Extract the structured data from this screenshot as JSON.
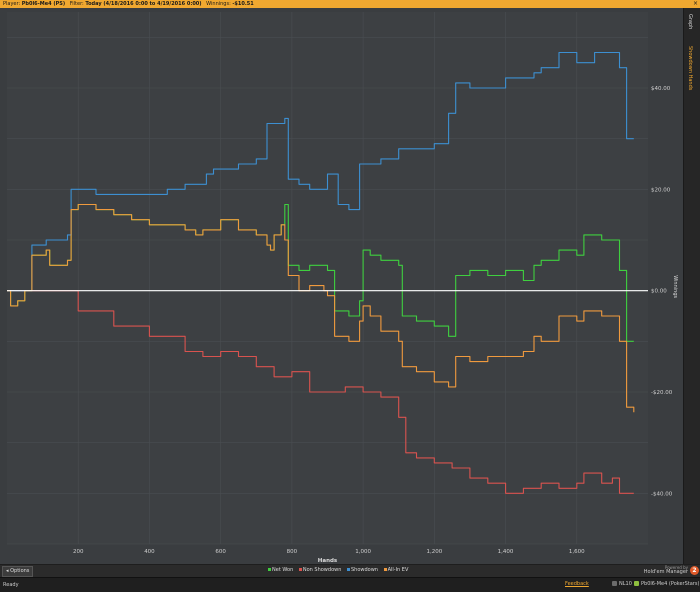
{
  "header": {
    "player_label": "Player:",
    "player_value": "Pb0l6-Me4 (PS)",
    "filter_label": "Filter:",
    "filter_value": "Today (4/18/2016 0:00 to 4/19/2016 0:00)",
    "winnings_label": "Winnings:",
    "winnings_value": "-$10.51",
    "close_glyph": "×"
  },
  "side_tabs": {
    "graph": "Graph",
    "showdown_hands": "Showdown Hands"
  },
  "options_label": "Options",
  "brand": {
    "powered_by": "Powered by",
    "name": "Hold'em Manager",
    "logo_digit": "2"
  },
  "status": {
    "text": "Ready",
    "feedback": "Feedback",
    "stake": "NL10",
    "player": "Pb0l6-Me4 (PokerStars)"
  },
  "colors": {
    "net_won": "#3fcf3f",
    "non_showdown": "#d9534f",
    "showdown": "#3d8fd1",
    "allin_ev": "#f09a3e",
    "zero_line": "#ffffff",
    "accent": "#f0a830"
  },
  "chart_data": {
    "type": "line",
    "xlabel": "Hands",
    "ylabel": "Winnings",
    "xlim": [
      0,
      1800
    ],
    "ylim": [
      -50,
      55
    ],
    "x_ticks": [
      200,
      400,
      600,
      800,
      1000,
      1200,
      1400,
      1600
    ],
    "x_tick_labels": [
      "200",
      "400",
      "600",
      "800",
      "1,000",
      "1,200",
      "1,400",
      "1,600"
    ],
    "y_ticks": [
      40,
      20,
      0,
      -20,
      -40
    ],
    "y_tick_labels": [
      "$40.00",
      "$20.00",
      "$0.00",
      "-$20.00",
      "-$40.00"
    ],
    "grid": true,
    "legend_position": "bottom-center",
    "series": [
      {
        "name": "Net Won",
        "color": "#3fcf3f",
        "points": [
          [
            0,
            0
          ],
          [
            10,
            -3
          ],
          [
            30,
            -2
          ],
          [
            50,
            0
          ],
          [
            70,
            7
          ],
          [
            110,
            8
          ],
          [
            120,
            5
          ],
          [
            170,
            6
          ],
          [
            180,
            16
          ],
          [
            200,
            17
          ],
          [
            250,
            16
          ],
          [
            300,
            15
          ],
          [
            350,
            14
          ],
          [
            400,
            13
          ],
          [
            450,
            13
          ],
          [
            500,
            12
          ],
          [
            530,
            11
          ],
          [
            550,
            12
          ],
          [
            580,
            12
          ],
          [
            600,
            14
          ],
          [
            650,
            12
          ],
          [
            700,
            11
          ],
          [
            730,
            9
          ],
          [
            740,
            8
          ],
          [
            750,
            11
          ],
          [
            770,
            13
          ],
          [
            780,
            17
          ],
          [
            790,
            5
          ],
          [
            820,
            4
          ],
          [
            850,
            5
          ],
          [
            890,
            5
          ],
          [
            900,
            4
          ],
          [
            920,
            -4
          ],
          [
            960,
            -5
          ],
          [
            990,
            -2
          ],
          [
            1000,
            8
          ],
          [
            1020,
            7
          ],
          [
            1050,
            6
          ],
          [
            1100,
            5
          ],
          [
            1110,
            -5
          ],
          [
            1150,
            -6
          ],
          [
            1200,
            -7
          ],
          [
            1240,
            -9
          ],
          [
            1260,
            3
          ],
          [
            1300,
            4
          ],
          [
            1350,
            3
          ],
          [
            1400,
            4
          ],
          [
            1450,
            2
          ],
          [
            1480,
            5
          ],
          [
            1500,
            6
          ],
          [
            1550,
            8
          ],
          [
            1600,
            7
          ],
          [
            1620,
            11
          ],
          [
            1670,
            10
          ],
          [
            1720,
            4
          ],
          [
            1740,
            -10
          ],
          [
            1760,
            -10
          ]
        ]
      },
      {
        "name": "Non Showdown",
        "color": "#d9534f",
        "points": [
          [
            0,
            0
          ],
          [
            100,
            0
          ],
          [
            200,
            -4
          ],
          [
            300,
            -7
          ],
          [
            400,
            -9
          ],
          [
            500,
            -12
          ],
          [
            550,
            -13
          ],
          [
            600,
            -12
          ],
          [
            650,
            -13
          ],
          [
            700,
            -15
          ],
          [
            750,
            -17
          ],
          [
            800,
            -16
          ],
          [
            850,
            -20
          ],
          [
            900,
            -20
          ],
          [
            950,
            -19
          ],
          [
            1000,
            -20
          ],
          [
            1050,
            -21
          ],
          [
            1100,
            -25
          ],
          [
            1120,
            -32
          ],
          [
            1150,
            -33
          ],
          [
            1200,
            -34
          ],
          [
            1250,
            -35
          ],
          [
            1300,
            -37
          ],
          [
            1350,
            -38
          ],
          [
            1400,
            -40
          ],
          [
            1450,
            -39
          ],
          [
            1500,
            -38
          ],
          [
            1550,
            -39
          ],
          [
            1600,
            -38
          ],
          [
            1620,
            -36
          ],
          [
            1670,
            -38
          ],
          [
            1700,
            -37
          ],
          [
            1720,
            -40
          ],
          [
            1760,
            -40
          ]
        ]
      },
      {
        "name": "Showdown",
        "color": "#3d8fd1",
        "points": [
          [
            0,
            0
          ],
          [
            30,
            0
          ],
          [
            50,
            0
          ],
          [
            70,
            9
          ],
          [
            110,
            10
          ],
          [
            170,
            11
          ],
          [
            180,
            20
          ],
          [
            250,
            19
          ],
          [
            300,
            19
          ],
          [
            350,
            19
          ],
          [
            400,
            19
          ],
          [
            450,
            20
          ],
          [
            500,
            21
          ],
          [
            550,
            21
          ],
          [
            560,
            23
          ],
          [
            580,
            24
          ],
          [
            600,
            24
          ],
          [
            650,
            25
          ],
          [
            700,
            26
          ],
          [
            730,
            33
          ],
          [
            760,
            33
          ],
          [
            780,
            34
          ],
          [
            790,
            22
          ],
          [
            820,
            21
          ],
          [
            850,
            20
          ],
          [
            900,
            23
          ],
          [
            930,
            17
          ],
          [
            960,
            16
          ],
          [
            990,
            25
          ],
          [
            1050,
            26
          ],
          [
            1100,
            28
          ],
          [
            1150,
            28
          ],
          [
            1200,
            29
          ],
          [
            1240,
            35
          ],
          [
            1260,
            41
          ],
          [
            1300,
            40
          ],
          [
            1350,
            40
          ],
          [
            1400,
            42
          ],
          [
            1450,
            42
          ],
          [
            1480,
            43
          ],
          [
            1500,
            44
          ],
          [
            1550,
            47
          ],
          [
            1600,
            45
          ],
          [
            1650,
            47
          ],
          [
            1700,
            47
          ],
          [
            1720,
            44
          ],
          [
            1740,
            30
          ],
          [
            1760,
            30
          ]
        ]
      },
      {
        "name": "All-In EV",
        "color": "#f09a3e",
        "points": [
          [
            0,
            0
          ],
          [
            10,
            -3
          ],
          [
            30,
            -2
          ],
          [
            50,
            0
          ],
          [
            70,
            7
          ],
          [
            110,
            8
          ],
          [
            120,
            5
          ],
          [
            170,
            6
          ],
          [
            180,
            16
          ],
          [
            200,
            17
          ],
          [
            250,
            16
          ],
          [
            300,
            15
          ],
          [
            350,
            14
          ],
          [
            400,
            13
          ],
          [
            450,
            13
          ],
          [
            500,
            12
          ],
          [
            530,
            11
          ],
          [
            550,
            12
          ],
          [
            580,
            12
          ],
          [
            600,
            14
          ],
          [
            650,
            12
          ],
          [
            700,
            11
          ],
          [
            730,
            9
          ],
          [
            740,
            8
          ],
          [
            750,
            11
          ],
          [
            770,
            13
          ],
          [
            780,
            10
          ],
          [
            790,
            3
          ],
          [
            820,
            0
          ],
          [
            850,
            1
          ],
          [
            890,
            0
          ],
          [
            900,
            -1
          ],
          [
            920,
            -9
          ],
          [
            960,
            -10
          ],
          [
            990,
            -6
          ],
          [
            1000,
            -3
          ],
          [
            1020,
            -5
          ],
          [
            1050,
            -8
          ],
          [
            1100,
            -10
          ],
          [
            1110,
            -15
          ],
          [
            1150,
            -16
          ],
          [
            1200,
            -18
          ],
          [
            1240,
            -19
          ],
          [
            1260,
            -13
          ],
          [
            1300,
            -14
          ],
          [
            1350,
            -13
          ],
          [
            1400,
            -13
          ],
          [
            1450,
            -12
          ],
          [
            1480,
            -9
          ],
          [
            1500,
            -10
          ],
          [
            1550,
            -5
          ],
          [
            1600,
            -6
          ],
          [
            1620,
            -4
          ],
          [
            1670,
            -5
          ],
          [
            1720,
            -10
          ],
          [
            1740,
            -23
          ],
          [
            1760,
            -24
          ]
        ]
      }
    ]
  }
}
